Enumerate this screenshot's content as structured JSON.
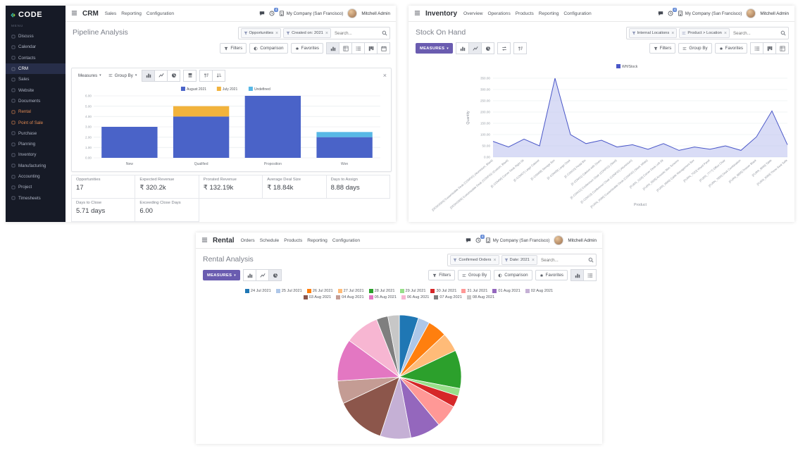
{
  "global": {
    "user_name": "Mitchell Admin",
    "company": "My Company (San Francisco)",
    "activity_count": "4",
    "search_placeholder": "Search..."
  },
  "sidebar": {
    "logo_text": "CODE",
    "menu_label": "MENU",
    "items": [
      {
        "label": "Discuss"
      },
      {
        "label": "Calendar"
      },
      {
        "label": "Contacts"
      },
      {
        "label": "CRM"
      },
      {
        "label": "Sales"
      },
      {
        "label": "Website"
      },
      {
        "label": "Documents"
      },
      {
        "label": "Rental"
      },
      {
        "label": "Point of Sale"
      },
      {
        "label": "Purchase"
      },
      {
        "label": "Planning"
      },
      {
        "label": "Inventory"
      },
      {
        "label": "Manufacturing"
      },
      {
        "label": "Accounting"
      },
      {
        "label": "Project"
      },
      {
        "label": "Timesheets"
      }
    ]
  },
  "crm": {
    "app": "CRM",
    "nav": [
      "Sales",
      "Reporting",
      "Configuration"
    ],
    "title": "Pipeline Analysis",
    "facets": [
      {
        "label": "Opportunities"
      },
      {
        "label": "Created on: 2021"
      }
    ],
    "filters_label": "Filters",
    "comparison_label": "Comparison",
    "favorites_label": "Favorites",
    "measures_label": "Measures",
    "group_by_label": "Group By",
    "kpis": [
      {
        "label": "Opportunities",
        "value": "17"
      },
      {
        "label": "Expected Revenue",
        "value": "₹ 320.2k"
      },
      {
        "label": "Prorated Revenue",
        "value": "₹ 132.19k"
      },
      {
        "label": "Average Deal Size",
        "value": "₹ 18.84k"
      },
      {
        "label": "Days to Assign",
        "value": "8.88 days"
      },
      {
        "label": "Days to Close",
        "value": "5.71 days"
      },
      {
        "label": "Exceeding Close Days",
        "value": "6.00"
      }
    ]
  },
  "inventory": {
    "app": "Inventory",
    "nav": [
      "Overview",
      "Operations",
      "Products",
      "Reporting",
      "Configuration"
    ],
    "title": "Stock On Hand",
    "facets": [
      {
        "label": "Internal Locations"
      },
      {
        "label": "Product > Location"
      }
    ],
    "measures_label": "MEASURES",
    "filters_label": "Filters",
    "group_by_label": "Group By",
    "favorites_label": "Favorites"
  },
  "rental": {
    "app": "Rental",
    "nav": [
      "Orders",
      "Schedule",
      "Products",
      "Reporting",
      "Configuration"
    ],
    "title": "Rental Analysis",
    "facets": [
      {
        "label": "Confirmed Orders"
      },
      {
        "label": "Date: 2021"
      }
    ],
    "measures_label": "MEASURES",
    "filters_label": "Filters",
    "group_by_label": "Group By",
    "comparison_label": "Comparison",
    "favorites_label": "Favorites"
  },
  "chart_data": [
    {
      "type": "bar",
      "stacked": true,
      "title": "Pipeline Analysis",
      "categories": [
        "New",
        "Qualified",
        "Proposition",
        "Won"
      ],
      "series": [
        {
          "name": "August 2021",
          "color": "#4a63c8",
          "values": [
            3,
            4,
            6,
            2
          ]
        },
        {
          "name": "July 2021",
          "color": "#f2b33c",
          "values": [
            0,
            1,
            0,
            0
          ]
        },
        {
          "name": "Undefined",
          "color": "#58b8e6",
          "values": [
            0,
            0,
            0,
            0.5
          ]
        }
      ],
      "ylim": [
        0,
        6
      ],
      "ytick_step": 1,
      "grid": true,
      "legend_position": "top"
    },
    {
      "type": "line",
      "area": true,
      "title": "Stock On Hand",
      "xlabel": "Product",
      "ylabel": "Quantity",
      "ylim": [
        0,
        350
      ],
      "ytick_step": 50,
      "grid": true,
      "legend_position": "top",
      "categories": [
        "[DESK0004] Customizable Desk (CONFIG) (Aluminium, Black)",
        "[DESK0005] Customizable Desk (CONFIG) (Custom, Black)",
        "[E-COM06] Corner Desk Right Sit",
        "[E-COM07] Large Cabinet",
        "[E-COM08] Storage Box",
        "[E-COM09] Large Desk",
        "[E-COM10] Pedal Bin",
        "[E-COM11] Cabinet with Doors",
        "[E-COM12] Conference Chair (CONFIG) (Steel)",
        "[E-COM13] Conference Chair (CONFIG) (Aluminium)",
        "[FURN_0096] Customizable Desk (CONFIG) (Steel, White)",
        "[FURN_1118] Corner Desk Left Sit",
        "[FURN_5555] Acoustic Bloc Screens",
        "[FURN_6666] Cable Management Box",
        "[FURN_7023] Wood Panel",
        "[FURN_7777] Office Chair",
        "[FURN_7800] Desk Combination",
        "[FURN_8855] Drawer Black",
        "[FURN_9666] Table",
        "[FURN_9999] Three-Seat Sofa"
      ],
      "series": [
        {
          "name": "WH/Stock",
          "color": "#4a57c8",
          "fill": "#b9c0ee",
          "values": [
            70,
            45,
            80,
            50,
            350,
            100,
            60,
            75,
            45,
            55,
            35,
            60,
            30,
            45,
            35,
            50,
            30,
            90,
            205,
            55
          ]
        }
      ]
    },
    {
      "type": "pie",
      "title": "Rental Analysis",
      "legend_position": "top",
      "legend_rows": [
        10,
        6
      ],
      "categories": [
        "24 Jul 2021",
        "25 Jul 2021",
        "26 Jul 2021",
        "27 Jul 2021",
        "28 Jul 2021",
        "29 Jul 2021",
        "30 Jul 2021",
        "31 Jul 2021",
        "01 Aug 2021",
        "02 Aug 2021",
        "03 Aug 2021",
        "04 Aug 2021",
        "05 Aug 2021",
        "06 Aug 2021",
        "07 Aug 2021",
        "08 Aug 2021"
      ],
      "values": [
        5,
        3,
        5,
        5,
        10,
        2,
        3,
        6,
        8,
        8,
        13,
        6,
        11,
        9,
        3,
        3
      ],
      "colors": [
        "#1f77b4",
        "#aec7e8",
        "#ff7f0e",
        "#ffbb78",
        "#2ca02c",
        "#98df8a",
        "#d62728",
        "#ff9896",
        "#9467bd",
        "#c5b0d5",
        "#8c564b",
        "#c49c94",
        "#e377c2",
        "#f7b6d2",
        "#7f7f7f",
        "#c7c7c7"
      ]
    }
  ]
}
